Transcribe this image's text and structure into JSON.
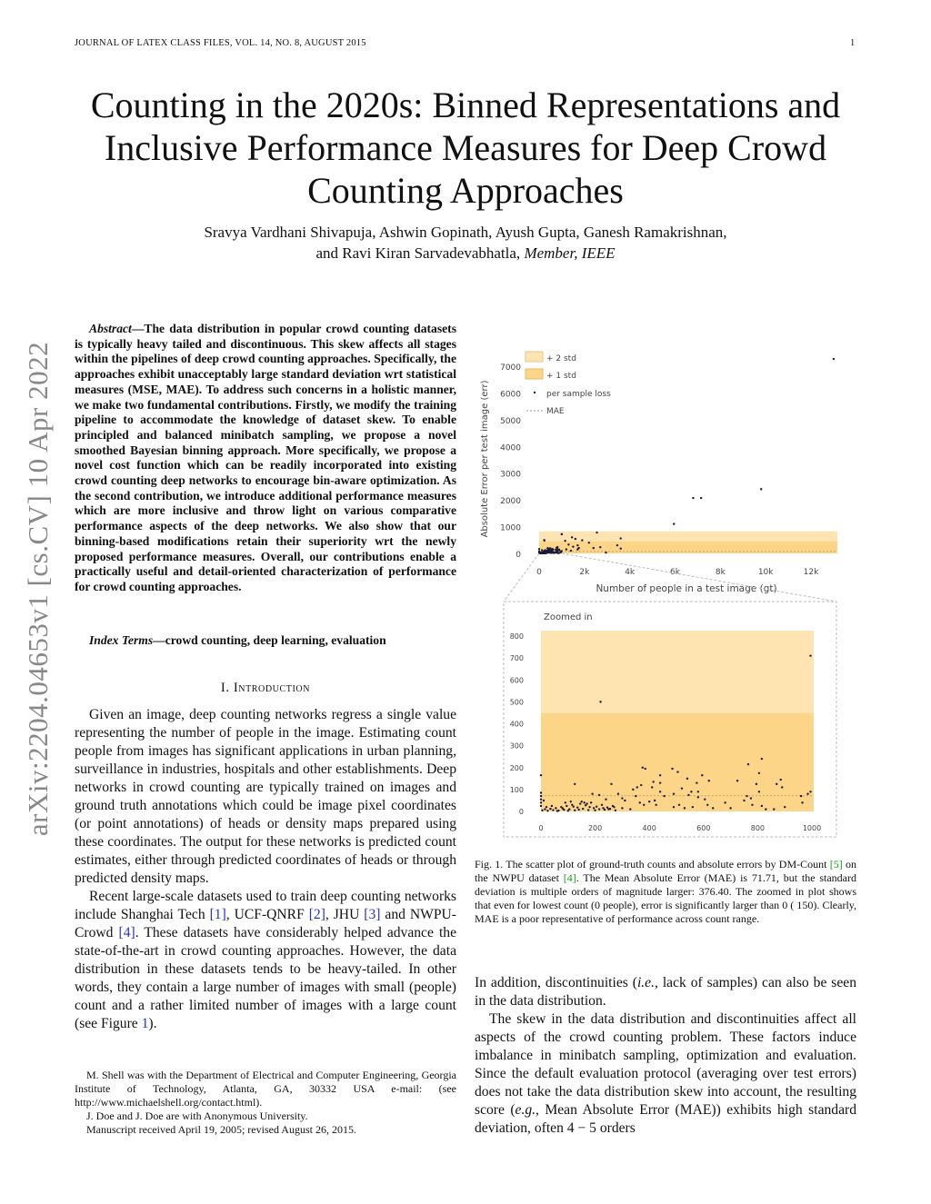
{
  "header": {
    "running": "JOURNAL OF LATEX CLASS FILES, VOL. 14, NO. 8, AUGUST 2015",
    "page": "1"
  },
  "title": "Counting in the 2020s: Binned Representations and Inclusive Performance Measures for Deep Crowd Counting Approaches",
  "authors": {
    "line1": "Sravya Vardhani Shivapuja, Ashwin Gopinath, Ayush Gupta, Ganesh Ramakrishnan,",
    "line2": "and Ravi Kiran Sarvadevabhatla,",
    "member": "Member, IEEE"
  },
  "arxiv_id": "arXiv:2204.04653v1  [cs.CV]  10 Apr 2022",
  "abstract": {
    "label": "Abstract",
    "text": "—The data distribution in popular crowd counting datasets is typically heavy tailed and discontinuous. This skew affects all stages within the pipelines of deep crowd counting approaches. Specifically, the approaches exhibit unacceptably large standard deviation wrt statistical measures (MSE, MAE). To address such concerns in a holistic manner, we make two fundamental contributions. Firstly, we modify the training pipeline to accommodate the knowledge of dataset skew. To enable principled and balanced minibatch sampling, we propose a novel smoothed Bayesian binning approach. More specifically, we propose a novel cost function which can be readily incorporated into existing crowd counting deep networks to encourage bin-aware optimization. As the second contribution, we introduce additional performance measures which are more inclusive and throw light on various comparative performance aspects of the deep networks. We also show that our binning-based modifications retain their superiority wrt the newly proposed performance measures. Overall, our contributions enable a practically useful and detail-oriented characterization of performance for crowd counting approaches."
  },
  "index_terms": {
    "label": "Index Terms",
    "text": "—crowd counting, deep learning, evaluation"
  },
  "section": {
    "num": "I.",
    "title": "Introduction"
  },
  "intro": {
    "p1": "Given an image, deep counting networks regress a single value representing the number of people in the image. Estimating count people from images has significant applications in urban planning, surveillance in industries, hospitals and other establishments. Deep networks in crowd counting are typically trained on images and ground truth annotations which could be image pixel coordinates (or point annotations) of heads or density maps prepared using these coordinates. The output for these networks is predicted count estimates, either through predicted coordinates of heads or through predicted density maps.",
    "p2a": "Recent large-scale datasets used to train deep counting networks include Shanghai Tech ",
    "r1": "[1]",
    "p2b": ", UCF-QNRF ",
    "r2": "[2]",
    "p2c": ", JHU ",
    "r3": "[3]",
    "p2d": " and NWPU-Crowd ",
    "r4": "[4]",
    "p2e": ". These datasets have considerably helped advance the state-of-the-art in crowd counting approaches. However, the data distribution in these datasets tends to be heavy-tailed. In other words, they contain a large number of images with small (people) count and a rather limited number of images with a large count (see Figure ",
    "fig": "1",
    "p2f": ")."
  },
  "footnotes": [
    "M. Shell was with the Department of Electrical and Computer Engineering, Georgia Institute of Technology, Atlanta, GA, 30332 USA e-mail: (see http://www.michaelshell.org/contact.html).",
    "J. Doe and J. Doe are with Anonymous University.",
    "Manuscript received April 19, 2005; revised August 26, 2015."
  ],
  "caption": {
    "a": "Fig. 1.  The scatter plot of ground-truth counts and absolute errors by DM-Count ",
    "r5": "[5]",
    "b": " on the NWPU dataset ",
    "r4": "[4]",
    "c": ". The Mean Absolute Error (MAE) is 71.71, but the standard deviation is multiple orders of magnitude larger: 376.40. The zoomed in plot shows that even for lowest count (0 people), error is significantly larger than 0 ( 150). Clearly, MAE is a poor representative of performance across count range."
  },
  "right": {
    "p1a": "In addition, discontinuities (",
    "ie": "i.e.",
    "p1b": ", lack of samples) can also be seen in the data distribution.",
    "p2a": "The skew in the data distribution and discontinuities affect all aspects of the crowd counting problem. These factors induce imbalance in minibatch sampling, optimization and evaluation. Since the default evaluation protocol (averaging over test errors) does not take the data distribution skew into account, the resulting score (",
    "eg": "e.g.",
    "p2b": ", Mean Absolute Error (MAE)) exhibits high standard deviation, often 4 − 5 orders"
  },
  "chart_data": [
    {
      "type": "scatter",
      "title": "",
      "xlabel": "Number of people in a test image (gt)",
      "ylabel": "Absolute Error per test image (err)",
      "xlim": [
        0,
        13000
      ],
      "ylim": [
        0,
        7000
      ],
      "xticks": [
        0,
        2000,
        4000,
        6000,
        8000,
        10000,
        12000
      ],
      "xtick_labels": [
        "0",
        "2k",
        "4k",
        "6k",
        "8k",
        "10k",
        "12k"
      ],
      "yticks": [
        0,
        1000,
        2000,
        3000,
        4000,
        5000,
        6000,
        7000
      ],
      "ytick_labels": [
        "0",
        "1000",
        "2000",
        "3000",
        "4000",
        "5000",
        "6000",
        "7000"
      ],
      "legend": {
        "placement": "top-left",
        "entries": [
          "+ 2 std",
          "+ 1 std",
          "per sample loss",
          "MAE"
        ]
      },
      "mae": 71.71,
      "std": 376.4,
      "band_1std": 448.11,
      "band_2std": 824.51,
      "colors": {
        "band2": "#fde4b0",
        "band1": "#fdd588",
        "point": "#1a1a3a",
        "mae": "#c8a060"
      },
      "points": [
        [
          13000,
          7270
        ],
        [
          9800,
          2400
        ],
        [
          7150,
          2070
        ],
        [
          6800,
          2070
        ],
        [
          5950,
          1100
        ],
        [
          230,
          480
        ],
        [
          1000,
          720
        ],
        [
          1150,
          470
        ],
        [
          1450,
          600
        ],
        [
          1600,
          540
        ],
        [
          1300,
          330
        ],
        [
          1700,
          300
        ],
        [
          1750,
          200
        ],
        [
          2550,
          780
        ],
        [
          1900,
          490
        ],
        [
          2200,
          400
        ],
        [
          2400,
          200
        ],
        [
          2700,
          230
        ],
        [
          3600,
          560
        ],
        [
          3450,
          300
        ],
        [
          3600,
          180
        ],
        [
          2950,
          30
        ],
        [
          1500,
          250
        ],
        [
          1700,
          150
        ],
        [
          1200,
          150
        ],
        [
          1400,
          100
        ]
      ]
    },
    {
      "type": "scatter",
      "title": "Zoomed in",
      "xlim": [
        0,
        1000
      ],
      "ylim": [
        0,
        800
      ],
      "xticks": [
        0,
        200,
        400,
        600,
        800,
        1000
      ],
      "xtick_labels": [
        "0",
        "200",
        "400",
        "600",
        "800",
        "1000"
      ],
      "yticks": [
        0,
        100,
        200,
        300,
        400,
        500,
        600,
        700,
        800
      ],
      "ytick_labels": [
        "0",
        "100",
        "200",
        "300",
        "400",
        "500",
        "600",
        "700",
        "800"
      ],
      "points": [
        [
          0,
          165
        ],
        [
          0,
          85
        ],
        [
          0,
          70
        ],
        [
          0,
          55
        ],
        [
          0,
          40
        ],
        [
          0,
          25
        ],
        [
          10,
          50
        ],
        [
          125,
          125
        ],
        [
          220,
          500
        ],
        [
          260,
          125
        ],
        [
          190,
          80
        ],
        [
          215,
          75
        ],
        [
          240,
          55
        ],
        [
          285,
          80
        ],
        [
          300,
          60
        ],
        [
          310,
          50
        ],
        [
          340,
          100
        ],
        [
          355,
          110
        ],
        [
          370,
          120
        ],
        [
          375,
          200
        ],
        [
          385,
          195
        ],
        [
          350,
          70
        ],
        [
          365,
          40
        ],
        [
          380,
          30
        ],
        [
          400,
          45
        ],
        [
          410,
          110
        ],
        [
          415,
          135
        ],
        [
          440,
          165
        ],
        [
          440,
          130
        ],
        [
          440,
          90
        ],
        [
          455,
          70
        ],
        [
          420,
          50
        ],
        [
          425,
          30
        ],
        [
          485,
          195
        ],
        [
          490,
          80
        ],
        [
          505,
          180
        ],
        [
          520,
          105
        ],
        [
          540,
          150
        ],
        [
          545,
          75
        ],
        [
          555,
          90
        ],
        [
          575,
          130
        ],
        [
          580,
          90
        ],
        [
          580,
          65
        ],
        [
          595,
          165
        ],
        [
          605,
          55
        ],
        [
          620,
          140
        ],
        [
          615,
          30
        ],
        [
          635,
          15
        ],
        [
          680,
          40
        ],
        [
          700,
          15
        ],
        [
          725,
          140
        ],
        [
          750,
          50
        ],
        [
          760,
          70
        ],
        [
          765,
          215
        ],
        [
          775,
          60
        ],
        [
          780,
          30
        ],
        [
          795,
          125
        ],
        [
          805,
          175
        ],
        [
          805,
          90
        ],
        [
          815,
          240
        ],
        [
          815,
          25
        ],
        [
          830,
          10
        ],
        [
          860,
          10
        ],
        [
          870,
          125
        ],
        [
          885,
          145
        ],
        [
          890,
          110
        ],
        [
          900,
          20
        ],
        [
          960,
          70
        ],
        [
          965,
          40
        ],
        [
          985,
          80
        ],
        [
          995,
          90
        ],
        [
          995,
          710
        ],
        [
          490,
          20
        ],
        [
          510,
          30
        ],
        [
          530,
          15
        ],
        [
          560,
          20
        ],
        [
          330,
          10
        ],
        [
          300,
          15
        ],
        [
          270,
          20
        ],
        [
          250,
          10
        ],
        [
          5,
          5
        ],
        [
          15,
          10
        ],
        [
          25,
          3
        ],
        [
          35,
          12
        ],
        [
          45,
          6
        ],
        [
          55,
          15
        ],
        [
          65,
          4
        ],
        [
          75,
          20
        ],
        [
          85,
          8
        ],
        [
          95,
          25
        ],
        [
          105,
          10
        ],
        [
          115,
          30
        ],
        [
          125,
          5
        ],
        [
          135,
          18
        ],
        [
          145,
          35
        ],
        [
          155,
          12
        ],
        [
          165,
          28
        ],
        [
          175,
          6
        ],
        [
          185,
          40
        ],
        [
          195,
          15
        ],
        [
          205,
          22
        ],
        [
          215,
          10
        ],
        [
          225,
          30
        ],
        [
          235,
          8
        ],
        [
          245,
          18
        ],
        [
          255,
          12
        ],
        [
          265,
          25
        ],
        [
          275,
          5
        ],
        [
          20,
          20
        ],
        [
          40,
          25
        ],
        [
          60,
          2
        ],
        [
          80,
          14
        ],
        [
          100,
          3
        ],
        [
          120,
          22
        ],
        [
          140,
          8
        ],
        [
          160,
          40
        ],
        [
          180,
          20
        ],
        [
          200,
          5
        ],
        [
          230,
          15
        ],
        [
          110,
          45
        ],
        [
          90,
          40
        ],
        [
          150,
          45
        ],
        [
          170,
          35
        ]
      ]
    }
  ]
}
